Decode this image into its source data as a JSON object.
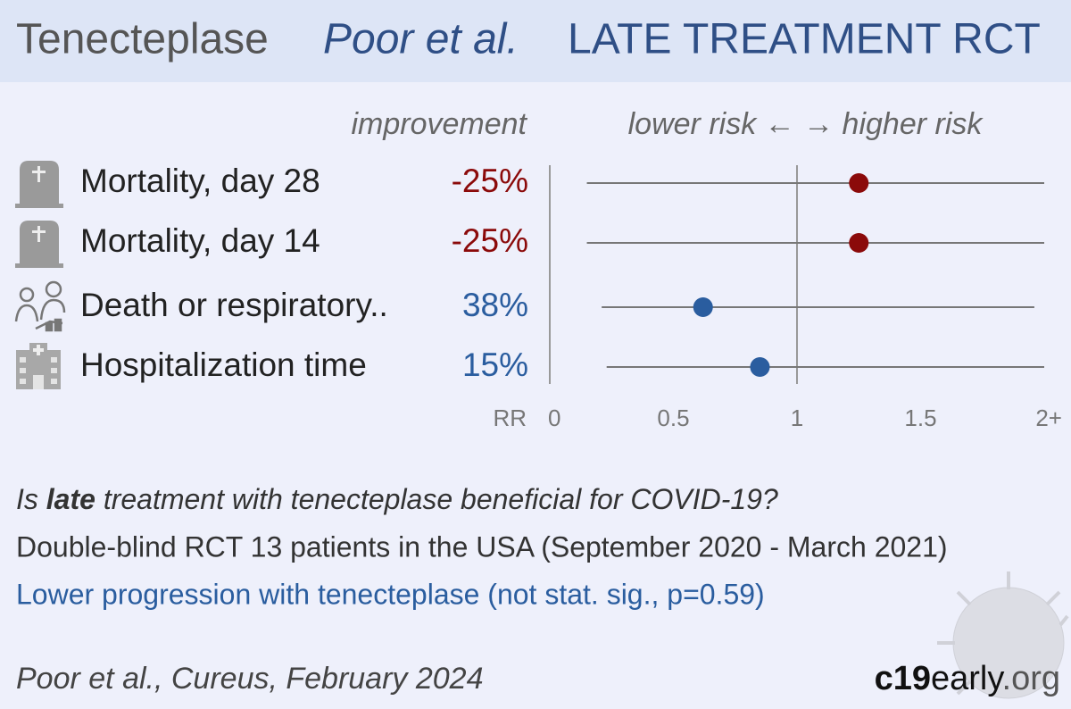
{
  "header": {
    "drug": "Tenecteplase",
    "study": "Poor et al.",
    "kind": "LATE TREATMENT RCT"
  },
  "chart_data": {
    "type": "forest",
    "improvement_label": "improvement",
    "direction_label": "lower risk ← → higher risk",
    "axis_label": "RR",
    "xlim": [
      0,
      2
    ],
    "xticks": [
      0,
      0.5,
      1,
      1.5,
      {
        "value": 2,
        "label": "2+"
      }
    ],
    "reference": 1,
    "outcomes": [
      {
        "name": "Mortality, day 28",
        "improvement": "-25%",
        "rr": 1.25,
        "ci": [
          0.15,
          2
        ],
        "color": "#8b0a0a"
      },
      {
        "name": "Mortality, day 14",
        "improvement": "-25%",
        "rr": 1.25,
        "ci": [
          0.15,
          2
        ],
        "color": "#8b0a0a"
      },
      {
        "name": "Death or respiratory..",
        "improvement": "38%",
        "rr": 0.62,
        "ci": [
          0.21,
          1.96
        ],
        "color": "#2a5d9f"
      },
      {
        "name": "Hospitalization time",
        "improvement": "15%",
        "rr": 0.85,
        "ci": [
          0.23,
          2
        ],
        "color": "#2a5d9f"
      }
    ]
  },
  "summary": {
    "question_pre": "Is ",
    "question_bold": "late",
    "question_post": " treatment with tenecteplase beneficial for COVID-19?",
    "design": "Double-blind RCT 13 patients in the USA (September 2020 - March 2021)",
    "result": "Lower progression with tenecteplase (not stat. sig., p=0.59)"
  },
  "footer": {
    "citation": "Poor et al., Cureus, February 2024",
    "logo_a": "c19",
    "logo_b": "early",
    "logo_c": ".org"
  }
}
